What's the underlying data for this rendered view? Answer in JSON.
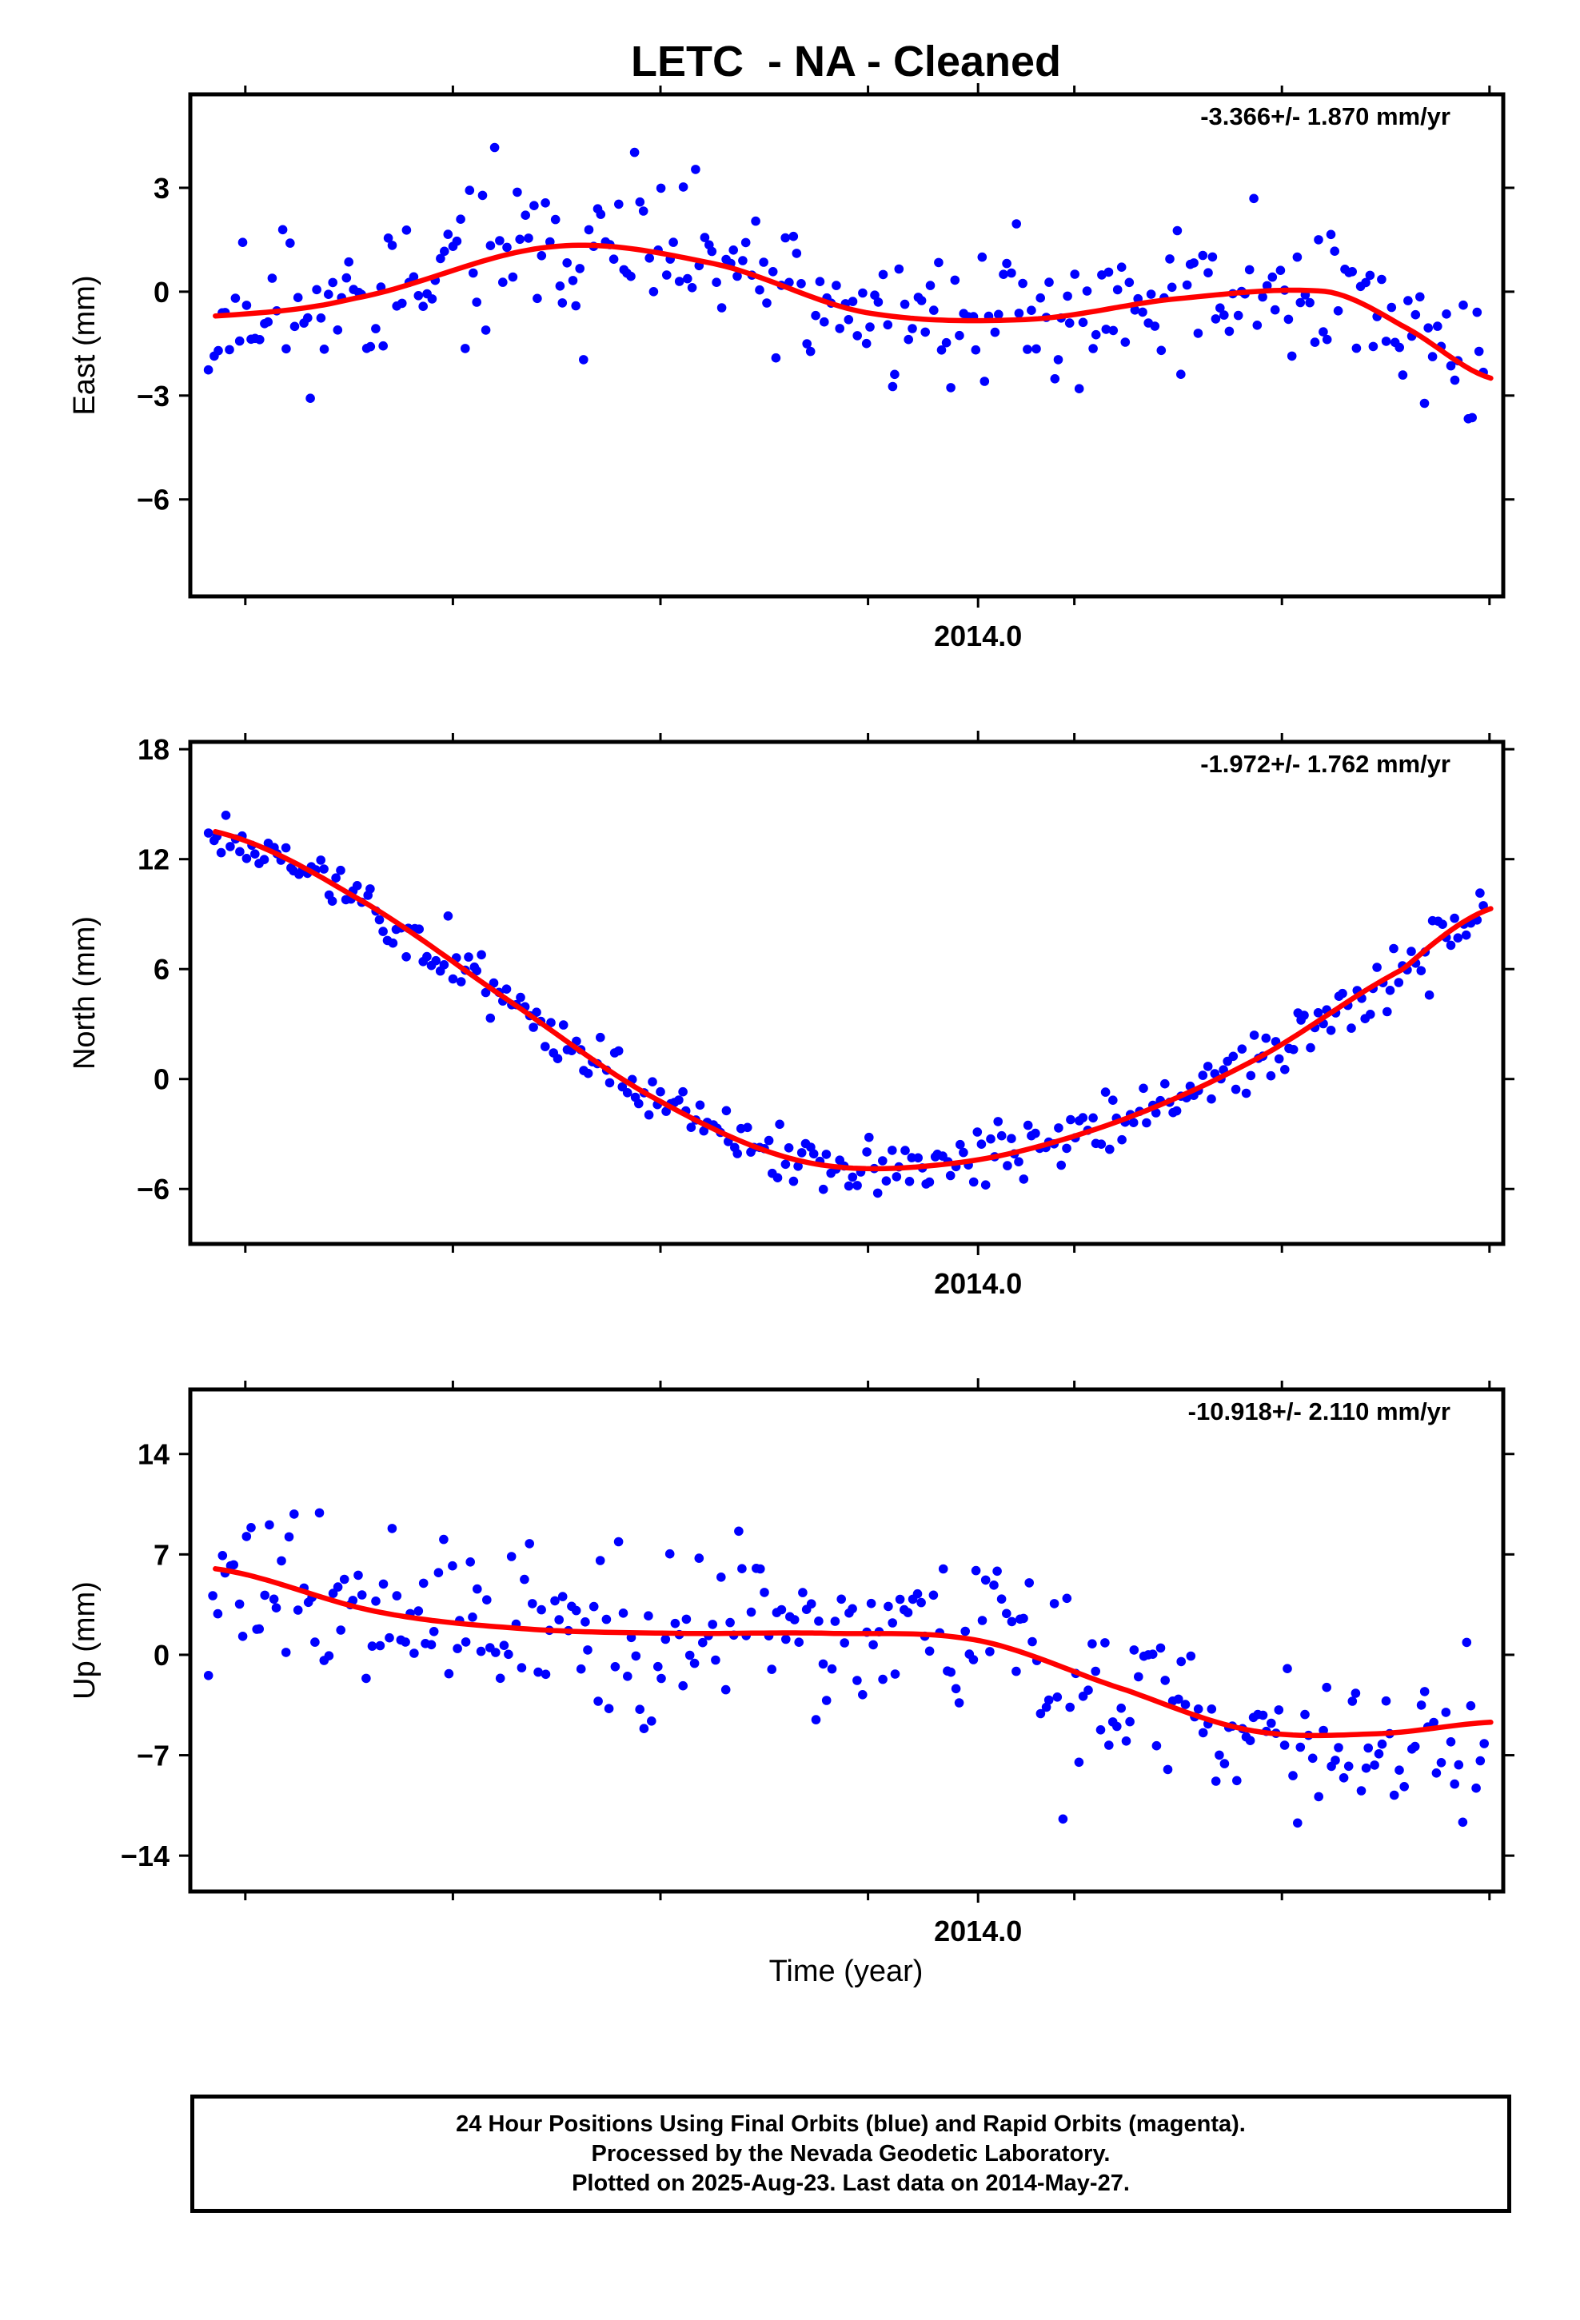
{
  "figure": {
    "title": "LETC  - NA - Cleaned",
    "xlabel": "Time (year)"
  },
  "caption": {
    "line1": "24 Hour Positions Using Final Orbits (blue) and Rapid Orbits (magenta).",
    "line2": "Processed by the Nevada Geodetic Laboratory.",
    "line3": "Plotted on 2025-Aug-23. Last data on 2014-May-27."
  },
  "colors": {
    "final": "#0000ff",
    "rapid": "#ff00ff",
    "fit": "#ff0000",
    "axis": "#000000"
  },
  "chart_data": [
    {
      "type": "scatter",
      "title": "LETC  - NA - Cleaned",
      "ylabel": "East (mm)",
      "rate_label": "-3.366+/- 1.870 mm/yr",
      "xlim": [
        2013.37,
        2014.42
      ],
      "ylim": [
        -8.8,
        5.7
      ],
      "yticks": [
        -6,
        -3,
        0,
        3
      ],
      "ytick_labels": [
        "−6",
        "−3",
        "0",
        "3"
      ],
      "xtick_label": "2014.0",
      "grid": false,
      "seed": 11,
      "noise": 1.7,
      "fit": {
        "x": [
          2013.39,
          2013.5,
          2013.66,
          2013.79,
          2013.91,
          2014.04,
          2014.16,
          2014.28,
          2014.34,
          2014.41
        ],
        "y": [
          -0.7,
          -0.2,
          1.3,
          0.8,
          -0.6,
          -0.8,
          -0.2,
          0.0,
          -1.0,
          -2.5
        ]
      }
    },
    {
      "type": "scatter",
      "ylabel": "North (mm)",
      "rate_label": "-1.972+/- 1.762 mm/yr",
      "xlim": [
        2013.37,
        2014.42
      ],
      "ylim": [
        -9.0,
        18.4
      ],
      "yticks": [
        -6,
        0,
        6,
        12,
        18
      ],
      "ytick_labels": [
        "−6",
        "0",
        "6",
        "12",
        "18"
      ],
      "xtick_label": "2014.0",
      "grid": false,
      "seed": 23,
      "noise": 1.3,
      "fit": {
        "x": [
          2013.39,
          2013.5,
          2013.62,
          2013.74,
          2013.86,
          2013.98,
          2014.1,
          2014.22,
          2014.34,
          2014.41
        ],
        "y": [
          13.5,
          10.0,
          4.5,
          -1.0,
          -4.5,
          -4.6,
          -2.6,
          1.0,
          6.0,
          9.3
        ]
      }
    },
    {
      "type": "scatter",
      "ylabel": "Up (mm)",
      "rate_label": "-10.918+/- 2.110 mm/yr",
      "xlim": [
        2013.37,
        2014.42
      ],
      "ylim": [
        -16.5,
        18.5
      ],
      "yticks": [
        -14,
        -7,
        0,
        7,
        14
      ],
      "ytick_labels": [
        "−14",
        "−7",
        "0",
        "7",
        "14"
      ],
      "xtick_label": "2014.0",
      "grid": false,
      "seed": 37,
      "noise": 4.8,
      "fit": {
        "x": [
          2013.39,
          2013.52,
          2013.64,
          2013.76,
          2013.88,
          2014.0,
          2014.12,
          2014.22,
          2014.32,
          2014.41
        ],
        "y": [
          6.0,
          3.0,
          1.8,
          1.5,
          1.5,
          1.0,
          -2.5,
          -5.3,
          -5.5,
          -4.7
        ]
      }
    }
  ]
}
